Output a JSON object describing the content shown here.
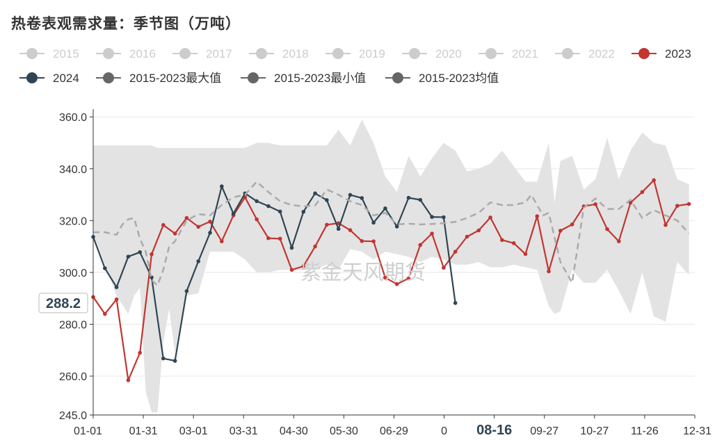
{
  "title": "热卷表观需求量：季节图（万吨）",
  "watermark": "紫金天风期货",
  "chart_data": {
    "type": "line",
    "x_ticks": [
      "01-01",
      "01-31",
      "03-01",
      "03-31",
      "04-30",
      "05-30",
      "06-29",
      "0",
      "08-16",
      "09-27",
      "10-27",
      "11-26",
      "12-31"
    ],
    "x_highlight": "08-16",
    "y_ticks": [
      "245.0",
      "260.0",
      "280.0",
      "300.0",
      "320.0",
      "340.0",
      "360.0"
    ],
    "ylim": [
      245,
      363
    ],
    "y_pointer": "288.2",
    "legend": [
      {
        "name": "2015",
        "color": "#cccccc",
        "active": false
      },
      {
        "name": "2016",
        "color": "#cccccc",
        "active": false
      },
      {
        "name": "2017",
        "color": "#cccccc",
        "active": false
      },
      {
        "name": "2018",
        "color": "#cccccc",
        "active": false
      },
      {
        "name": "2019",
        "color": "#cccccc",
        "active": false
      },
      {
        "name": "2020",
        "color": "#cccccc",
        "active": false
      },
      {
        "name": "2021",
        "color": "#cccccc",
        "active": false
      },
      {
        "name": "2022",
        "color": "#cccccc",
        "active": false
      },
      {
        "name": "2023",
        "color": "#c23531",
        "active": true
      },
      {
        "name": "2024",
        "color": "#2f4554",
        "active": true
      },
      {
        "name": "2015-2023最大值",
        "color": "#666666",
        "active": true
      },
      {
        "name": "2015-2023最小值",
        "color": "#666666",
        "active": true
      },
      {
        "name": "2015-2023均值",
        "color": "#666666",
        "active": true
      }
    ],
    "series": [
      {
        "name": "2023",
        "color": "#c23531",
        "week": [
          1,
          3,
          5,
          7,
          9,
          11,
          13,
          15,
          17,
          19,
          21,
          23,
          25,
          27,
          29,
          31,
          33,
          35,
          37,
          39,
          41,
          43,
          45,
          47,
          49,
          51,
          53,
          55,
          57,
          59,
          61,
          63,
          65,
          67,
          69,
          71,
          73,
          75,
          77,
          79,
          81,
          83,
          85,
          87,
          89,
          91,
          93,
          95,
          97,
          99,
          101,
          103
        ],
        "values": [
          290.5,
          284,
          289.6,
          258.4,
          269,
          307,
          318.3,
          315,
          321,
          317.6,
          319.6,
          312,
          322,
          329,
          320.5,
          313.2,
          313,
          301,
          302.4,
          310,
          318.4,
          319,
          316.3,
          312.1,
          312,
          298,
          295.5,
          297.7,
          310.6,
          315,
          301.8,
          308,
          313.8,
          316.2,
          321.2,
          312.5,
          311.3,
          307.1,
          321.7,
          300.4,
          316.1,
          318.5,
          325.5,
          326.3,
          316.7,
          312,
          326.9,
          331,
          335.6,
          318.3,
          325.7,
          326.4
        ]
      },
      {
        "name": "2024",
        "color": "#2f4554",
        "week": [
          1,
          3,
          5,
          7,
          9,
          11,
          13,
          15,
          17,
          19,
          21,
          23,
          25,
          27,
          29,
          31,
          33,
          35,
          37,
          39,
          41,
          43,
          45,
          47,
          49,
          51,
          53,
          55,
          57,
          59,
          61,
          63
        ],
        "values": [
          313.7,
          301.6,
          294.3,
          306.1,
          307.8,
          298.1,
          266.8,
          265.9,
          292.8,
          304.3,
          315.3,
          333.2,
          322.7,
          330.5,
          327.5,
          325.6,
          323.5,
          309.5,
          323.4,
          330.5,
          327.9,
          316.8,
          329.9,
          328.7,
          319.2,
          324.7,
          317.7,
          328.8,
          328,
          321.4,
          321.3,
          288.2
        ]
      },
      {
        "name": "2015-2023均值",
        "color": "#aaaaaa",
        "week": [
          1,
          3,
          5,
          6,
          7,
          8,
          9,
          10,
          11,
          12,
          13,
          14,
          15,
          17,
          19,
          21,
          23,
          25,
          27,
          29,
          31,
          33,
          35,
          37,
          39,
          41,
          43,
          45,
          47,
          49,
          51,
          53,
          55,
          57,
          59,
          61,
          63,
          65,
          67,
          69,
          71,
          73,
          75,
          76,
          77,
          78,
          79,
          81,
          83,
          85,
          87,
          89,
          91,
          93,
          95,
          97,
          99,
          101,
          103
        ],
        "values": [
          315.5,
          315.5,
          314.5,
          318.5,
          320.5,
          321,
          313,
          308,
          297,
          295,
          301,
          310,
          312,
          320,
          322.5,
          322,
          326,
          329,
          330,
          335,
          331,
          327.5,
          326,
          325.5,
          325.8,
          332,
          330,
          327.5,
          326,
          322,
          323,
          318.5,
          318.8,
          318.5,
          318.7,
          319,
          319.5,
          321,
          323,
          327,
          326,
          326,
          327,
          330,
          326,
          322,
          323,
          304,
          296,
          325,
          328.5,
          324.5,
          324.5,
          328,
          321,
          324,
          322,
          320,
          315
        ]
      }
    ],
    "band": {
      "name": "2015-2023最大值/最小值",
      "week": [
        1,
        5,
        7,
        8,
        9,
        10,
        11,
        12,
        13,
        14,
        15,
        17,
        19,
        21,
        23,
        25,
        27,
        29,
        31,
        33,
        35,
        37,
        39,
        41,
        43,
        45,
        47,
        49,
        51,
        53,
        55,
        57,
        59,
        61,
        63,
        65,
        67,
        69,
        71,
        73,
        75,
        77,
        79,
        80,
        81,
        83,
        85,
        87,
        89,
        91,
        93,
        95,
        97,
        99,
        101,
        103
      ],
      "max": [
        349,
        349,
        349,
        349,
        349,
        349,
        349,
        348,
        348,
        348,
        348,
        348,
        348,
        348,
        348,
        348,
        348,
        350,
        350,
        349,
        349,
        349,
        349,
        349,
        355,
        349,
        359,
        350,
        337,
        331,
        345,
        337,
        344,
        350,
        347,
        339,
        340,
        342,
        347,
        341,
        335,
        335,
        350,
        327,
        343,
        345,
        332,
        336,
        352,
        336,
        347,
        354,
        350,
        349,
        336,
        334
      ],
      "min": [
        315,
        291,
        284,
        291,
        294,
        254,
        246,
        246,
        273,
        286,
        269,
        291,
        292,
        308,
        308,
        308,
        305,
        300,
        300,
        301,
        301,
        301,
        301,
        303,
        301,
        309,
        308,
        305,
        308,
        307,
        306,
        304,
        306,
        305,
        303,
        303,
        304,
        302,
        302,
        303,
        302,
        301,
        287,
        284,
        285,
        301,
        296,
        296,
        301,
        293,
        284,
        300,
        283,
        281,
        304,
        299
      ]
    }
  }
}
